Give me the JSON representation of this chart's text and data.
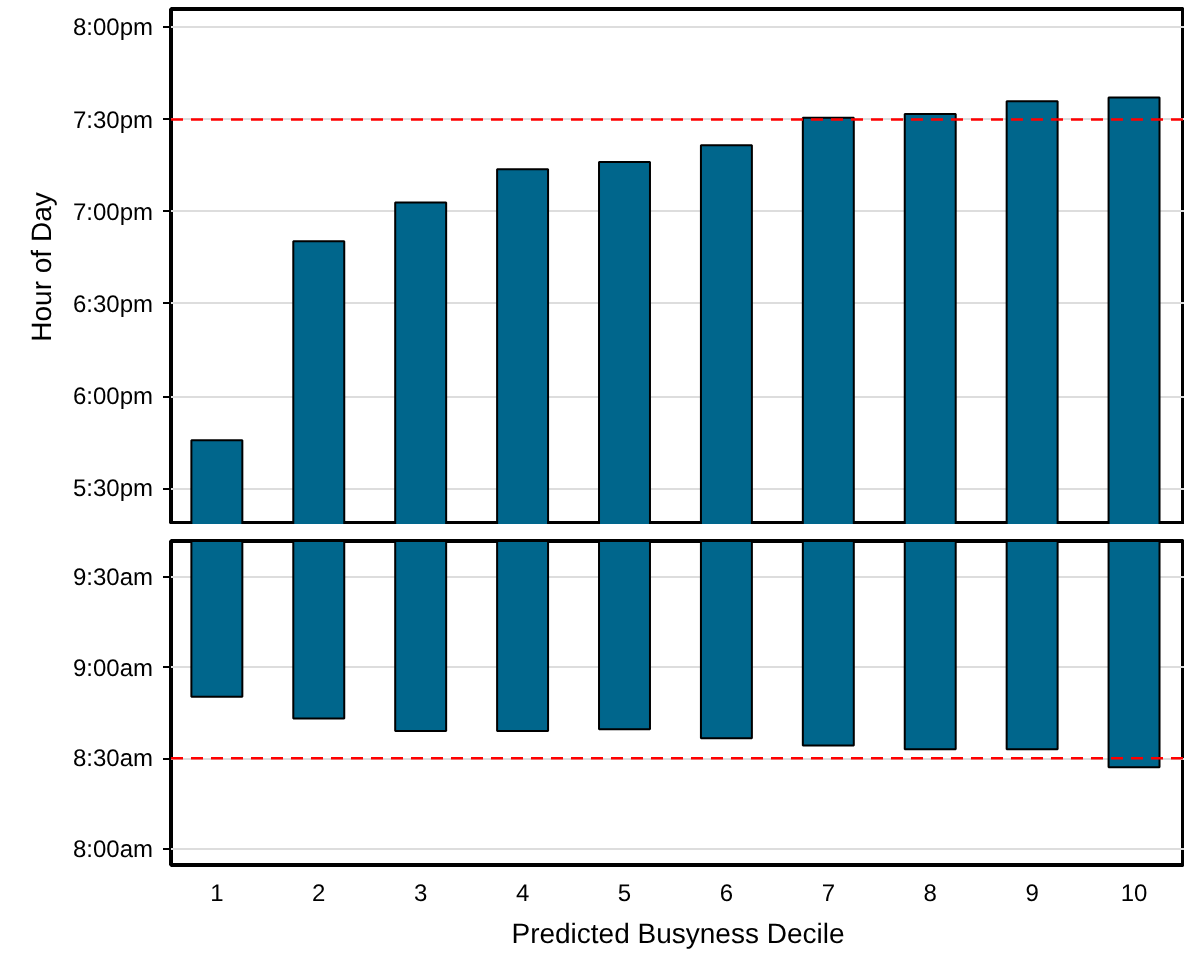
{
  "chart_data": [
    {
      "type": "bar",
      "ylabel": "Hour of Day",
      "categories": [
        "1",
        "2",
        "3",
        "4",
        "5",
        "6",
        "7",
        "8",
        "9",
        "10"
      ],
      "color": "#00668c",
      "base": [
        17.3,
        17.3,
        17.3,
        17.3,
        17.3,
        17.3,
        17.3,
        17.3,
        17.3,
        17.3
      ],
      "values": [
        0.46,
        1.54,
        1.75,
        1.93,
        1.97,
        2.06,
        2.21,
        2.23,
        2.3,
        2.32
      ],
      "ylim": [
        17.3,
        20.1
      ],
      "yticks": [
        {
          "value": 17.5,
          "label": "5:30pm"
        },
        {
          "value": 18,
          "label": "6:00pm"
        },
        {
          "value": 18.5,
          "label": "6:30pm"
        },
        {
          "value": 19,
          "label": "7:00pm"
        },
        {
          "value": 19.5,
          "label": "7:30pm"
        },
        {
          "value": 20,
          "label": "8:00pm"
        }
      ],
      "ref_lines": [
        {
          "axis": "y",
          "value": 19.5,
          "color": "#ff0000",
          "line_style": "dashed"
        }
      ],
      "grid": "y",
      "tick_labels": "y"
    },
    {
      "type": "bar",
      "xlabel": "Predicted Busyness Decile",
      "categories": [
        "1",
        "2",
        "3",
        "4",
        "5",
        "6",
        "7",
        "8",
        "9",
        "10"
      ],
      "color": "#00668c",
      "base": [
        8.84,
        8.72,
        8.65,
        8.65,
        8.66,
        8.61,
        8.57,
        8.55,
        8.55,
        8.45
      ],
      "values": [
        0.86,
        0.98,
        1.05,
        1.05,
        1.04,
        1.09,
        1.13,
        1.15,
        1.15,
        1.25
      ],
      "ylim": [
        7.91,
        9.7
      ],
      "yticks": [
        {
          "value": 8,
          "label": "8:00am"
        },
        {
          "value": 8.5,
          "label": "8:30am"
        },
        {
          "value": 9,
          "label": "9:00am"
        },
        {
          "value": 9.5,
          "label": "9:30am"
        }
      ],
      "ref_lines": [
        {
          "axis": "y",
          "value": 8.5,
          "color": "#ff0000",
          "line_style": "dashed"
        }
      ],
      "grid": "y"
    }
  ]
}
